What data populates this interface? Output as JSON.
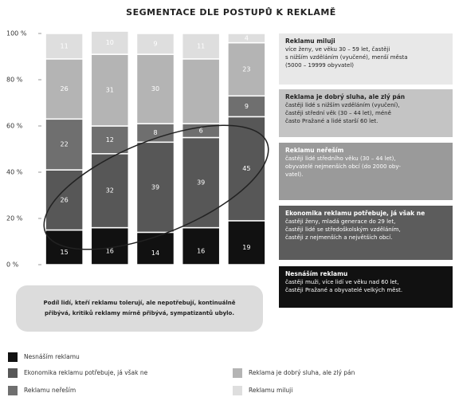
{
  "chart_data": {
    "type": "stacked_bar",
    "title": "SEGMENTACE DLE POSTUPŮ K REKLAMĚ",
    "categories": [
      null,
      null,
      null,
      null,
      null
    ],
    "ylim": [
      0,
      100
    ],
    "yticks": [
      {
        "value": 0,
        "label": "0 %"
      },
      {
        "value": 20,
        "label": "20 %"
      },
      {
        "value": 40,
        "label": "40 %"
      },
      {
        "value": 60,
        "label": "60 %"
      },
      {
        "value": 80,
        "label": "80 %"
      },
      {
        "value": 100,
        "label": "100 %"
      }
    ],
    "series": [
      {
        "name": "Nesnáším reklamu",
        "color": "#111111",
        "values": [
          15,
          16,
          14,
          16,
          19
        ]
      },
      {
        "name": "Ekonomika reklamu potřebuje, já však ne",
        "color": "#575757",
        "values": [
          26,
          32,
          39,
          39,
          45
        ]
      },
      {
        "name": "Reklamu neřeším",
        "color": "#6f6f6f",
        "values": [
          22,
          12,
          8,
          6,
          9
        ]
      },
      {
        "name": "Reklama je dobrý sluha, ale zlý pán",
        "color": "#b4b4b4",
        "values": [
          26,
          31,
          30,
          28,
          23
        ],
        "value_labels": [
          "26",
          "31",
          "30",
          null,
          "23"
        ]
      },
      {
        "name": "Reklamu miluji",
        "color": "#dedede",
        "values": [
          11,
          10,
          9,
          11,
          4
        ]
      }
    ],
    "annotations": [
      {
        "title": "Reklamu miluji",
        "lines": [
          "více ženy, ve věku 30 – 59 let, častěji",
          "s nižším vzděláním (vyučené), menší města",
          "(5000 – 19999 obyvatel)"
        ]
      },
      {
        "title": "Reklama je dobrý sluha, ale zlý pán",
        "lines": [
          "častěji lidé s nižším vzděláním (vyučení),",
          "častěji střední věk (30 – 44 let), méně",
          "často Pražané a lidé starší 60 let."
        ]
      },
      {
        "title": "Reklamu neřeším",
        "lines": [
          "častěji lidé středního věku (30 – 44 let),",
          "obyvatelé nejmenších obcí (do 2000 oby-",
          "vatel)."
        ]
      },
      {
        "title": "Ekonomika reklamu potřebuje, já však ne",
        "lines": [
          "častěji ženy, mladá generace do 29 let,",
          "častěji lidé se středoškolským vzděláním,",
          "častěji z nejmenších a největších obcí."
        ]
      },
      {
        "title": "Nesnáším reklamu",
        "lines": [
          "častěji muži, více lidí ve věku nad 60 let,",
          "častěji Pražané a obyvatelé velkých měst."
        ]
      }
    ],
    "note": [
      "Podíl lidí, kteří reklamu tolerují, ale nepotřebují, kontinuálně",
      "přibývá, kritiků reklamy mírně přibývá, sympatizantů ubylo."
    ]
  }
}
